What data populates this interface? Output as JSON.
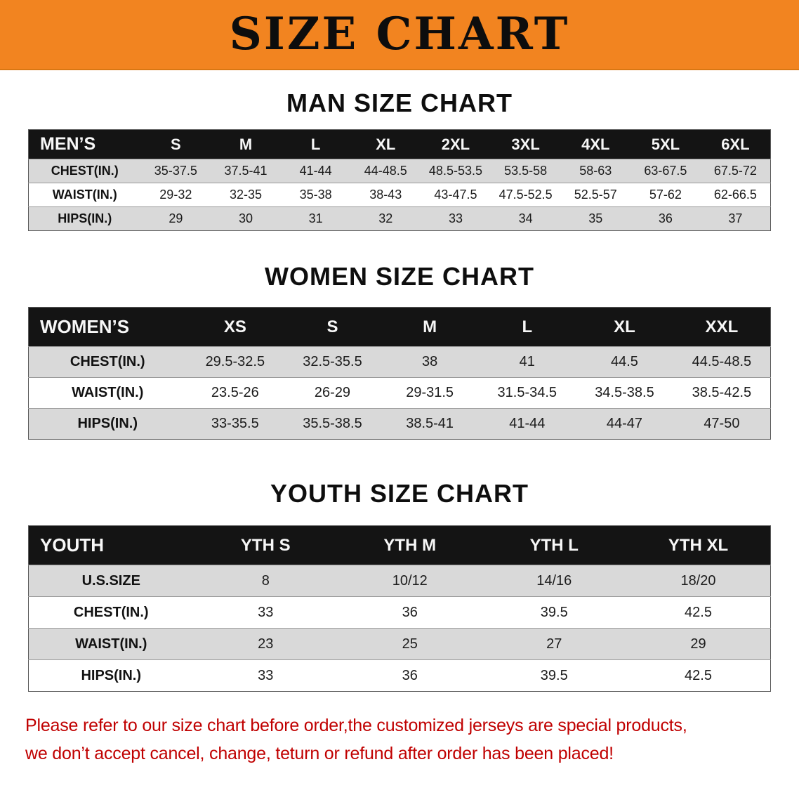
{
  "banner": {
    "title": "SIZE CHART"
  },
  "colors": {
    "banner_bg": "#F28420",
    "table_header_bg": "#141414",
    "row_stripe": "#D9D9D9",
    "footer_text": "#C00000"
  },
  "chart_data": [
    {
      "type": "table",
      "title": "MAN SIZE CHART",
      "columns": [
        "MEN’S",
        "S",
        "M",
        "L",
        "XL",
        "2XL",
        "3XL",
        "4XL",
        "5XL",
        "6XL"
      ],
      "rows": [
        {
          "label": "CHEST(IN.)",
          "values": [
            "35-37.5",
            "37.5-41",
            "41-44",
            "44-48.5",
            "48.5-53.5",
            "53.5-58",
            "58-63",
            "63-67.5",
            "67.5-72"
          ]
        },
        {
          "label": "WAIST(IN.)",
          "values": [
            "29-32",
            "32-35",
            "35-38",
            "38-43",
            "43-47.5",
            "47.5-52.5",
            "52.5-57",
            "57-62",
            "62-66.5"
          ]
        },
        {
          "label": "HIPS(IN.)",
          "values": [
            "29",
            "30",
            "31",
            "32",
            "33",
            "34",
            "35",
            "36",
            "37"
          ]
        }
      ]
    },
    {
      "type": "table",
      "title": "WOMEN SIZE CHART",
      "columns": [
        "WOMEN’S",
        "XS",
        "S",
        "M",
        "L",
        "XL",
        "XXL"
      ],
      "rows": [
        {
          "label": "CHEST(IN.)",
          "values": [
            "29.5-32.5",
            "32.5-35.5",
            "38",
            "41",
            "44.5",
            "44.5-48.5"
          ]
        },
        {
          "label": "WAIST(IN.)",
          "values": [
            "23.5-26",
            "26-29",
            "29-31.5",
            "31.5-34.5",
            "34.5-38.5",
            "38.5-42.5"
          ]
        },
        {
          "label": "HIPS(IN.)",
          "values": [
            "33-35.5",
            "35.5-38.5",
            "38.5-41",
            "41-44",
            "44-47",
            "47-50"
          ]
        }
      ]
    },
    {
      "type": "table",
      "title": "YOUTH SIZE CHART",
      "columns": [
        "YOUTH",
        "YTH S",
        "YTH M",
        "YTH L",
        "YTH XL"
      ],
      "rows": [
        {
          "label": "U.S.SIZE",
          "values": [
            "8",
            "10/12",
            "14/16",
            "18/20"
          ]
        },
        {
          "label": "CHEST(IN.)",
          "values": [
            "33",
            "36",
            "39.5",
            "42.5"
          ]
        },
        {
          "label": "WAIST(IN.)",
          "values": [
            "23",
            "25",
            "27",
            "29"
          ]
        },
        {
          "label": "HIPS(IN.)",
          "values": [
            "33",
            "36",
            "39.5",
            "42.5"
          ]
        }
      ]
    }
  ],
  "footer": {
    "line1": "Please refer to our size chart before order,the customized jerseys are special products,",
    "line2": "we don’t accept cancel, change, teturn or refund after order has been placed!"
  }
}
